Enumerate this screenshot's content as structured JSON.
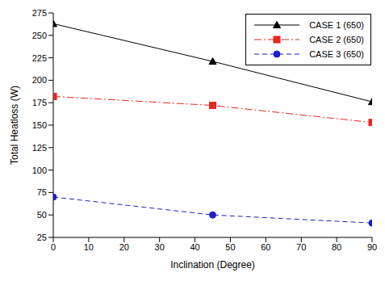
{
  "chart_data": {
    "type": "line",
    "x_label": "Inclination (Degree)",
    "y_label": "Total Heatloss (W)",
    "x": [
      0,
      45,
      90
    ],
    "xlim": [
      0,
      90
    ],
    "xticks": [
      0,
      10,
      20,
      30,
      40,
      50,
      60,
      70,
      80,
      90
    ],
    "ylim": [
      25,
      275
    ],
    "yticks": [
      25,
      50,
      75,
      100,
      125,
      150,
      175,
      200,
      225,
      250,
      275
    ],
    "grid": false,
    "legend": "upper right",
    "series": [
      {
        "name": "CASE 1 (650)",
        "color": "#000000",
        "marker": "triangle",
        "line_style": "solid",
        "values": [
          263,
          221,
          176
        ]
      },
      {
        "name": "CASE 2 (650)",
        "color": "#e8261f",
        "marker": "square",
        "line_style": "dashdot",
        "values": [
          182,
          172,
          153
        ]
      },
      {
        "name": "CASE 3 (650)",
        "color": "#1f1fd0",
        "marker": "circle",
        "line_style": "dashed",
        "values": [
          70,
          50,
          41
        ]
      }
    ]
  }
}
